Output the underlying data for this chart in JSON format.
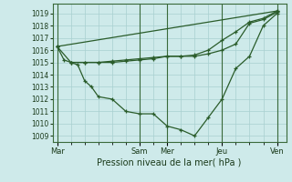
{
  "title": "",
  "xlabel": "Pression niveau de la mer( hPa )",
  "bg_color": "#ceeaea",
  "grid_color": "#a8d0d0",
  "line_color": "#2a5c2a",
  "ylim": [
    1008.5,
    1019.8
  ],
  "yticks": [
    1009,
    1010,
    1011,
    1012,
    1013,
    1014,
    1015,
    1016,
    1017,
    1018,
    1019
  ],
  "xtick_labels": [
    "Mar",
    "Sam",
    "Mer",
    "Jeu",
    "Ven"
  ],
  "xtick_positions": [
    0,
    36,
    48,
    72,
    96
  ],
  "xlim": [
    -2,
    100
  ],
  "lines": [
    {
      "x": [
        0,
        6,
        9,
        12,
        15,
        18,
        24,
        30,
        36,
        42,
        48,
        54,
        60,
        66,
        72,
        78,
        84,
        90,
        96
      ],
      "y": [
        1016.3,
        1015.0,
        1014.8,
        1013.5,
        1013.0,
        1012.2,
        1012.0,
        1011.0,
        1010.8,
        1010.8,
        1009.8,
        1009.5,
        1009.0,
        1010.5,
        1012.0,
        1014.5,
        1015.5,
        1018.0,
        1019.0
      ]
    },
    {
      "x": [
        0,
        3,
        6,
        12,
        18,
        24,
        30,
        36,
        42,
        48,
        54,
        60,
        66,
        72,
        78,
        84,
        90,
        96
      ],
      "y": [
        1016.3,
        1015.2,
        1015.0,
        1015.0,
        1015.0,
        1015.0,
        1015.1,
        1015.2,
        1015.3,
        1015.5,
        1015.5,
        1015.5,
        1015.7,
        1016.0,
        1016.5,
        1018.2,
        1018.5,
        1019.1
      ]
    },
    {
      "x": [
        6,
        12,
        18,
        24,
        30,
        36,
        42,
        48,
        54,
        60,
        66,
        72,
        78,
        84,
        90,
        96
      ],
      "y": [
        1015.0,
        1015.0,
        1015.0,
        1015.1,
        1015.2,
        1015.3,
        1015.4,
        1015.5,
        1015.5,
        1015.6,
        1016.0,
        1016.8,
        1017.5,
        1018.3,
        1018.6,
        1019.2
      ]
    },
    {
      "x": [
        0,
        96
      ],
      "y": [
        1016.3,
        1019.2
      ]
    }
  ]
}
